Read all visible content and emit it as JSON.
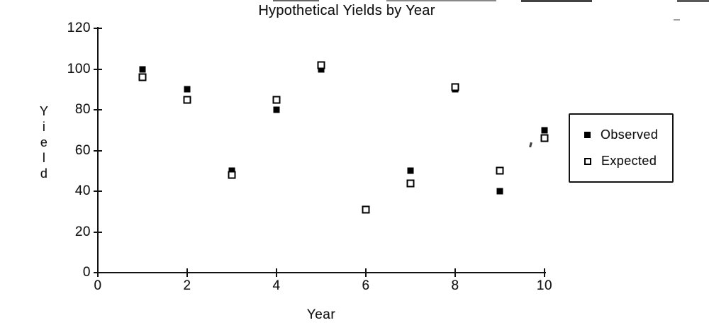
{
  "chart_data": {
    "type": "scatter",
    "title": "Hypothetical Yields by Year",
    "xlabel": "Year",
    "ylabel": "Yield",
    "xlim": [
      0,
      10
    ],
    "ylim": [
      0,
      120
    ],
    "xticks": [
      "0",
      "2",
      "4",
      "6",
      "8",
      "10"
    ],
    "yticks": [
      "0",
      "20",
      "40",
      "60",
      "80",
      "100",
      "120"
    ],
    "grid": false,
    "legend_position": "right",
    "x": [
      1,
      2,
      3,
      4,
      5,
      6,
      7,
      8,
      9,
      10
    ],
    "series": [
      {
        "name": "Observed",
        "marker": "filled-square",
        "values": [
          100,
          90,
          50,
          80,
          100,
          31,
          50,
          90,
          40,
          70
        ]
      },
      {
        "name": "Expected",
        "marker": "open-square",
        "values": [
          96,
          85,
          48,
          85,
          102,
          31,
          44,
          91,
          50,
          66
        ]
      }
    ],
    "colors": {
      "marker": "#000000",
      "text": "#141414",
      "axis": "#121212",
      "background": "#ffffff"
    }
  }
}
